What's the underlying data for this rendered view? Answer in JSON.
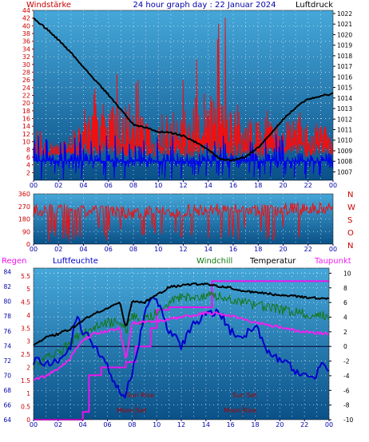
{
  "header": {
    "left": "Windstärke",
    "center": "24 hour graph day : 22 Januar 2024",
    "right": "Luftdruck"
  },
  "colors": {
    "wind": "#ee1111",
    "pressure": "#000000",
    "gust_low": "#0000ee",
    "regen": "#ee11ee",
    "humidity": "#0000cc",
    "windchill": "#117711",
    "temperature": "#000000",
    "dewpoint": "#ee22ee",
    "bg_top": "#46a7d9",
    "bg_bottom": "#0a5188",
    "axis_red": "#cc0000",
    "axis_blue": "#0000aa",
    "axis_black": "#000000"
  },
  "chart_data": [
    {
      "type": "line",
      "title": "24 hour graph day : 22 Januar 2024",
      "xlabel": "",
      "x_ticks": [
        "00",
        "02",
        "04",
        "06",
        "08",
        "10",
        "12",
        "14",
        "16",
        "18",
        "20",
        "22",
        "00"
      ],
      "left_axis": {
        "label": "Windstärke",
        "ylim": [
          0,
          44
        ],
        "ticks": [
          "2",
          "4",
          "6",
          "8",
          "10",
          "12",
          "14",
          "16",
          "18",
          "20",
          "22",
          "24",
          "26",
          "28",
          "30",
          "32",
          "34",
          "36",
          "38",
          "40",
          "42",
          "44"
        ]
      },
      "right_axis": {
        "label": "Luftdruck",
        "ylim": [
          1006.2,
          1022.3
        ],
        "ticks": [
          "1007",
          "1008",
          "1009",
          "1010",
          "1011",
          "1012",
          "1013",
          "1014",
          "1015",
          "1016",
          "1017",
          "1018",
          "1019",
          "1020",
          "1021",
          "1022"
        ]
      },
      "series": [
        {
          "name": "Windstärke",
          "axis": "left",
          "x": [
            0,
            1,
            2,
            3,
            4,
            5,
            6,
            7,
            8,
            9,
            10,
            11,
            12,
            13,
            14,
            15,
            16,
            17,
            18,
            19,
            20,
            21,
            22,
            23,
            24
          ],
          "values": [
            6,
            7,
            6,
            10,
            12,
            17,
            16,
            18,
            15,
            12,
            13,
            14,
            14,
            18,
            18,
            16,
            14,
            13,
            12,
            12,
            12,
            13,
            12,
            11,
            10
          ]
        },
        {
          "name": "Luftdruck",
          "axis": "right",
          "x": [
            0,
            1,
            2,
            3,
            4,
            5,
            6,
            7,
            8,
            9,
            10,
            11,
            12,
            13,
            14,
            15,
            16,
            17,
            18,
            19,
            20,
            21,
            22,
            23,
            24
          ],
          "values": [
            1021.5,
            1020.6,
            1019.5,
            1018.3,
            1016.9,
            1015.6,
            1014.3,
            1012.9,
            1011.5,
            1011.2,
            1010.8,
            1010.7,
            1010.4,
            1009.8,
            1009.1,
            1008.2,
            1008.1,
            1008.4,
            1009.3,
            1010.6,
            1012.0,
            1013.1,
            1013.9,
            1014.2,
            1014.4
          ]
        }
      ]
    },
    {
      "type": "line",
      "title": "",
      "x_ticks": [
        "00",
        "02",
        "04",
        "06",
        "08",
        "10",
        "12",
        "14",
        "16",
        "18",
        "20",
        "22",
        "00"
      ],
      "ylim": [
        0,
        360
      ],
      "y_ticks": [
        "0",
        "90",
        "180",
        "270",
        "360"
      ],
      "direction_labels": [
        "N",
        "W",
        "S",
        "O",
        "N"
      ],
      "series": [
        {
          "name": "Windrichtung",
          "x": [
            0,
            2,
            4,
            6,
            8,
            10,
            12,
            14,
            16,
            18,
            20,
            22,
            24
          ],
          "values": [
            240,
            250,
            230,
            240,
            220,
            240,
            235,
            250,
            245,
            240,
            250,
            250,
            260
          ]
        }
      ]
    },
    {
      "type": "line",
      "title": "",
      "x_ticks": [
        "00",
        "02",
        "04",
        "06",
        "08",
        "10",
        "12",
        "14",
        "16",
        "18",
        "20",
        "22",
        "00"
      ],
      "left_axis_regen": {
        "label": "Regen",
        "ylim": [
          0,
          5.8
        ],
        "ticks": [
          "0",
          "0.5",
          "1",
          "1.5",
          "2",
          "2.5",
          "3",
          "3.5",
          "4",
          "4.5",
          "5",
          "5.5"
        ]
      },
      "left_axis_humidity": {
        "label": "Luftfeuchte",
        "ylim": [
          64,
          84.5
        ],
        "ticks": [
          "64",
          "66",
          "68",
          "70",
          "72",
          "74",
          "76",
          "78",
          "80",
          "82",
          "84"
        ]
      },
      "right_axis": {
        "label": "Temperatur",
        "ylim": [
          -10,
          10.7
        ],
        "ticks": [
          "-10",
          "-8",
          "-6",
          "-4",
          "-2",
          "0",
          "2",
          "4",
          "6",
          "8",
          "10"
        ]
      },
      "annotations": [
        {
          "label": "Moon Set",
          "x": 8.3
        },
        {
          "label": "Moon Rise",
          "x": 17.0
        },
        {
          "label": "Sun Rise",
          "x": 8.2
        },
        {
          "label": "Sun Set",
          "x": 16.8
        }
      ],
      "series": [
        {
          "name": "Regen",
          "axis": "regen",
          "x": [
            0,
            3.7,
            4.0,
            4.5,
            5.5,
            7.5,
            8.1,
            8.3,
            9.5,
            10.0,
            11.0,
            13.0,
            14.4,
            14.5,
            20,
            24
          ],
          "values": [
            0,
            0,
            0.3,
            1.7,
            2.0,
            2.2,
            2.2,
            2.8,
            3.5,
            4.2,
            4.3,
            4.3,
            4.3,
            5.3,
            5.3,
            5.3
          ]
        },
        {
          "name": "Luftfeuchte",
          "axis": "humidity",
          "x": [
            0,
            1,
            2,
            3,
            3.5,
            4,
            5,
            6,
            7,
            7.3,
            8,
            9,
            9.7,
            10,
            11,
            12,
            13,
            14,
            15,
            16,
            17,
            18,
            19,
            20,
            21,
            22,
            23,
            23.5,
            24
          ],
          "values": [
            72,
            71.5,
            72,
            74,
            78,
            76,
            74,
            71,
            68,
            67,
            70,
            78,
            81,
            80,
            76,
            74,
            77,
            78,
            79,
            76,
            75,
            77,
            73,
            72,
            71,
            70,
            70,
            72,
            71
          ]
        },
        {
          "name": "Windchill",
          "axis": "temp",
          "x": [
            0,
            1,
            2,
            3,
            4,
            5,
            6,
            7,
            7.5,
            8,
            9,
            10,
            11,
            12,
            13,
            14,
            15,
            16,
            17,
            18,
            19,
            20,
            21,
            22,
            23,
            24
          ],
          "values": [
            -2.5,
            -1.8,
            -1.0,
            0.5,
            1.8,
            2.6,
            3.2,
            3.6,
            2.0,
            4.0,
            3.5,
            4.5,
            6.0,
            6.6,
            6.8,
            7.0,
            6.8,
            6.4,
            6.0,
            5.6,
            5.4,
            5.0,
            4.8,
            4.4,
            4.2,
            4.0
          ]
        },
        {
          "name": "Temperatur",
          "axis": "temp",
          "x": [
            0,
            1,
            2,
            3,
            4,
            5,
            6,
            7,
            7.5,
            8,
            9,
            10,
            11,
            12,
            13,
            14,
            15,
            16,
            17,
            18,
            19,
            20,
            21,
            22,
            23,
            24
          ],
          "values": [
            0.3,
            1.2,
            1.7,
            2.4,
            3.5,
            4.6,
            5.2,
            6.0,
            2.5,
            6.2,
            6.0,
            7.0,
            8.1,
            8.3,
            8.5,
            8.5,
            8.2,
            8.0,
            7.6,
            7.4,
            7.2,
            7.0,
            6.9,
            6.7,
            6.6,
            6.5
          ]
        },
        {
          "name": "Taupunkt",
          "axis": "temp",
          "x": [
            0,
            1,
            2,
            3,
            4,
            5,
            6,
            7,
            7.5,
            8,
            9,
            10,
            11,
            12,
            13,
            14,
            15,
            16,
            17,
            18,
            19,
            20,
            21,
            22,
            23,
            24
          ],
          "values": [
            -4.5,
            -4.0,
            -3.2,
            -1.5,
            0.8,
            1.8,
            2.1,
            2.5,
            -2.0,
            3.2,
            3.3,
            3.5,
            3.7,
            4.0,
            4.2,
            4.6,
            4.5,
            4.1,
            3.8,
            3.2,
            3.0,
            2.6,
            2.2,
            2.0,
            1.8,
            1.7
          ]
        }
      ]
    }
  ],
  "panel3_labels": {
    "regen": "Regen",
    "humidity": "Luftfeuchte",
    "windchill": "Windchill",
    "temperature": "Temperatur",
    "dewpoint": "Taupunkt"
  }
}
